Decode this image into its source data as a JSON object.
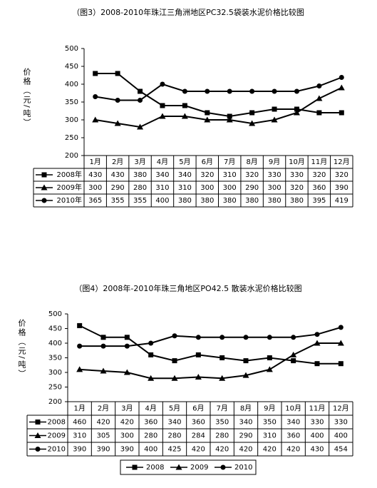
{
  "chart_data": [
    {
      "type": "line",
      "title": "（图3）2008-2010年珠江三角洲地区PC32.5袋装水泥价格比较图",
      "y_label": "价格（元/吨）",
      "categories": [
        "1月",
        "2月",
        "3月",
        "4月",
        "5月",
        "6月",
        "7月",
        "8月",
        "9月",
        "10月",
        "11月",
        "12月"
      ],
      "series": [
        {
          "name": "2008年",
          "color": "#000000",
          "marker": "square",
          "values": [
            430,
            430,
            380,
            340,
            340,
            320,
            310,
            320,
            330,
            330,
            320,
            320
          ]
        },
        {
          "name": "2009年",
          "color": "#000000",
          "marker": "triangle",
          "values": [
            300,
            290,
            280,
            310,
            310,
            300,
            300,
            290,
            300,
            320,
            360,
            390
          ]
        },
        {
          "name": "2010年",
          "color": "#000000",
          "marker": "circle",
          "values": [
            365,
            355,
            355,
            400,
            380,
            380,
            380,
            380,
            380,
            380,
            395,
            419
          ]
        }
      ],
      "ylim": [
        200,
        500
      ],
      "yticks": [
        200,
        250,
        300,
        350,
        400,
        450,
        500
      ],
      "grid": false,
      "data_table": true
    },
    {
      "type": "line",
      "title": "（图4）2008年-2010年珠三角地区PO42.5 散装水泥价格比较图",
      "y_label": "价格（元/吨）",
      "categories": [
        "1月",
        "2月",
        "3月",
        "4月",
        "5月",
        "6月",
        "7月",
        "8月",
        "9月",
        "10月",
        "11月",
        "12月"
      ],
      "series": [
        {
          "name": "2008",
          "color": "#000000",
          "marker": "square",
          "values": [
            460,
            420,
            420,
            360,
            340,
            360,
            350,
            340,
            350,
            340,
            330,
            330
          ]
        },
        {
          "name": "2009",
          "color": "#000000",
          "marker": "triangle",
          "values": [
            310,
            305,
            300,
            280,
            280,
            284,
            280,
            290,
            310,
            360,
            400,
            400
          ]
        },
        {
          "name": "2010",
          "color": "#000000",
          "marker": "circle",
          "values": [
            390,
            390,
            390,
            400,
            425,
            420,
            420,
            420,
            420,
            420,
            430,
            454
          ]
        }
      ],
      "ylim": [
        200,
        500
      ],
      "yticks": [
        200,
        250,
        300,
        350,
        400,
        450,
        500
      ],
      "grid": false,
      "data_table": true,
      "legend": "bottom"
    }
  ]
}
